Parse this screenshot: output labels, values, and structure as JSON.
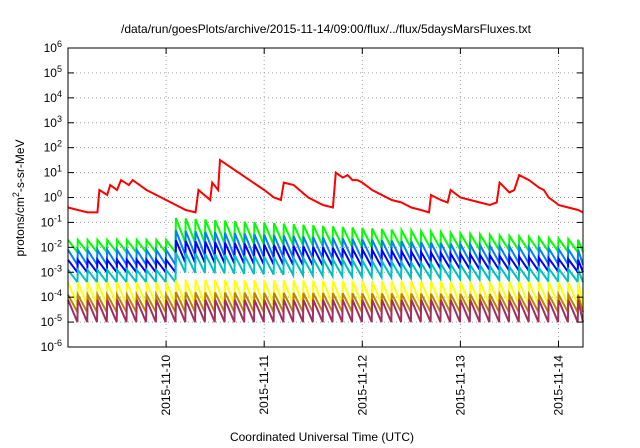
{
  "chart_data": {
    "type": "line",
    "title": "/data/run/goesPlots/archive/2015-11-14/09:00/flux/../flux/5daysMarsFluxes.txt",
    "xlabel": "Coordinated Universal Time (UTC)",
    "ylabel_base": "protons/cm",
    "ylabel_sup": "2",
    "ylabel_rest": "-s-sr-MeV",
    "yscale": "log",
    "ylim_exp": [
      -6,
      6
    ],
    "xlim_days": [
      0.0,
      5.25
    ],
    "y_ticks": [
      {
        "base": "10",
        "exp": "-6",
        "v": -6
      },
      {
        "base": "10",
        "exp": "-5",
        "v": -5
      },
      {
        "base": "10",
        "exp": "-4",
        "v": -4
      },
      {
        "base": "10",
        "exp": "-3",
        "v": -3
      },
      {
        "base": "10",
        "exp": "-2",
        "v": -2
      },
      {
        "base": "10",
        "exp": "-1",
        "v": -1
      },
      {
        "base": "10",
        "exp": "0",
        "v": 0
      },
      {
        "base": "10",
        "exp": "1",
        "v": 1
      },
      {
        "base": "10",
        "exp": "2",
        "v": 2
      },
      {
        "base": "10",
        "exp": "3",
        "v": 3
      },
      {
        "base": "10",
        "exp": "4",
        "v": 4
      },
      {
        "base": "10",
        "exp": "5",
        "v": 5
      },
      {
        "base": "10",
        "exp": "6",
        "v": 6
      }
    ],
    "x_ticks": [
      {
        "label": "2015-11-10",
        "d": 1.0
      },
      {
        "label": "2015-11-11",
        "d": 2.0
      },
      {
        "label": "2015-11-12",
        "d": 3.0
      },
      {
        "label": "2015-11-13",
        "d": 4.0
      },
      {
        "label": "2015-11-14",
        "d": 5.0
      }
    ],
    "grid": true,
    "series": [
      {
        "color": "#ff0000",
        "values": [
          [
            0.0,
            -0.4
          ],
          [
            0.1,
            -0.5
          ],
          [
            0.2,
            -0.6
          ],
          [
            0.3,
            -0.6
          ],
          [
            0.32,
            0.3
          ],
          [
            0.4,
            0.1
          ],
          [
            0.43,
            0.5
          ],
          [
            0.5,
            0.3
          ],
          [
            0.54,
            0.7
          ],
          [
            0.62,
            0.5
          ],
          [
            0.66,
            0.7
          ],
          [
            0.8,
            0.3
          ],
          [
            0.9,
            0.1
          ],
          [
            1.0,
            -0.1
          ],
          [
            1.1,
            -0.3
          ],
          [
            1.2,
            -0.5
          ],
          [
            1.3,
            -0.6
          ],
          [
            1.33,
            0.3
          ],
          [
            1.45,
            -0.1
          ],
          [
            1.47,
            0.6
          ],
          [
            1.53,
            0.3
          ],
          [
            1.55,
            1.5
          ],
          [
            1.7,
            1.1
          ],
          [
            1.85,
            0.7
          ],
          [
            2.0,
            0.3
          ],
          [
            2.1,
            0.0
          ],
          [
            2.17,
            -0.1
          ],
          [
            2.2,
            0.6
          ],
          [
            2.3,
            0.5
          ],
          [
            2.45,
            0.0
          ],
          [
            2.6,
            -0.3
          ],
          [
            2.7,
            -0.4
          ],
          [
            2.73,
            1.0
          ],
          [
            2.8,
            0.8
          ],
          [
            2.85,
            0.9
          ],
          [
            2.9,
            0.7
          ],
          [
            2.95,
            0.7
          ],
          [
            3.0,
            0.6
          ],
          [
            3.1,
            0.3
          ],
          [
            3.2,
            0.1
          ],
          [
            3.3,
            -0.1
          ],
          [
            3.4,
            -0.2
          ],
          [
            3.5,
            -0.4
          ],
          [
            3.6,
            -0.5
          ],
          [
            3.68,
            -0.6
          ],
          [
            3.7,
            0.1
          ],
          [
            3.8,
            -0.1
          ],
          [
            3.87,
            -0.2
          ],
          [
            3.9,
            0.3
          ],
          [
            4.0,
            0.0
          ],
          [
            4.1,
            -0.1
          ],
          [
            4.2,
            -0.2
          ],
          [
            4.3,
            -0.3
          ],
          [
            4.37,
            -0.2
          ],
          [
            4.4,
            0.6
          ],
          [
            4.5,
            0.2
          ],
          [
            4.55,
            0.3
          ],
          [
            4.6,
            0.9
          ],
          [
            4.7,
            0.7
          ],
          [
            4.8,
            0.4
          ],
          [
            4.85,
            0.3
          ],
          [
            4.9,
            0.0
          ],
          [
            4.97,
            -0.2
          ],
          [
            5.0,
            -0.3
          ],
          [
            5.1,
            -0.4
          ],
          [
            5.2,
            -0.5
          ],
          [
            5.25,
            -0.6
          ]
        ]
      },
      {
        "color": "#00ff00",
        "low": -2.2,
        "high": -1.7,
        "low2": -1.8,
        "high2": -0.8
      },
      {
        "color": "#0080ff",
        "low": -2.7,
        "high": -2.1,
        "low2": -2.3,
        "high2": -1.3
      },
      {
        "color": "#0000ff",
        "low": -3.0,
        "high": -2.5,
        "low2": -2.6,
        "high2": -1.7
      },
      {
        "color": "#00c0c0",
        "low": -3.4,
        "high": -2.9,
        "low2": -3.0,
        "high2": -2.2
      },
      {
        "color": "#ffff00",
        "low": -4.3,
        "high": -3.4,
        "low2": -4.3,
        "high2": -3.3
      },
      {
        "color": "#c08000",
        "low": -4.6,
        "high": -3.9,
        "low2": -4.6,
        "high2": -3.8
      },
      {
        "color": "#a03060",
        "low": -5.0,
        "high": -4.1,
        "low2": -5.0,
        "high2": -4.1
      }
    ]
  }
}
